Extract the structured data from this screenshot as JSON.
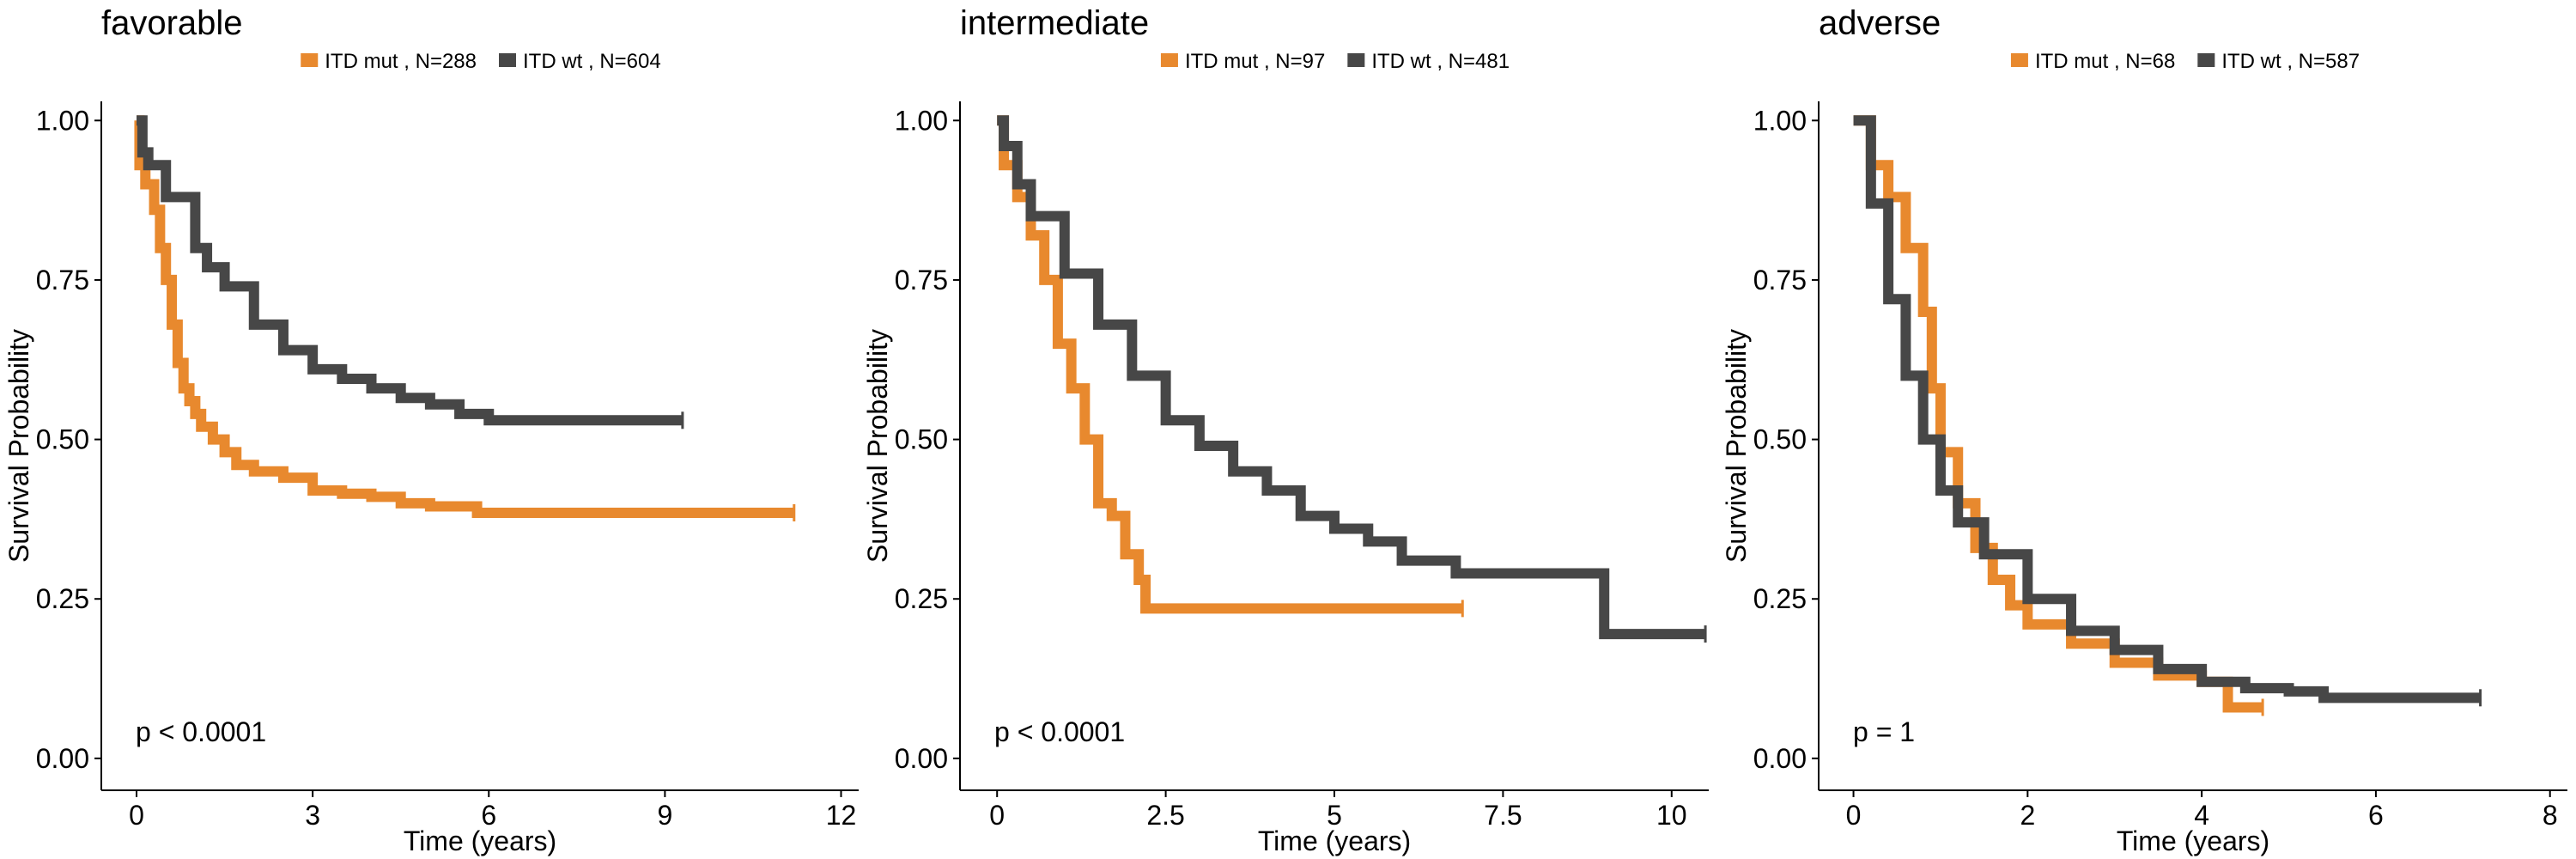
{
  "chart_data": [
    {
      "type": "line",
      "title": "favorable",
      "xlabel": "Time (years)",
      "ylabel": "Survival Probability",
      "xlim": [
        -0.6,
        12.3
      ],
      "ylim": [
        -0.05,
        1.03
      ],
      "xticks": [
        0,
        3,
        6,
        9,
        12
      ],
      "xtick_labels": [
        "0",
        "3",
        "6",
        "9",
        "12"
      ],
      "yticks": [
        0,
        0.25,
        0.5,
        0.75,
        1.0
      ],
      "ytick_labels": [
        "0.00",
        "0.25",
        "0.50",
        "0.75",
        "1.00"
      ],
      "pvalue": "p < 0.0001",
      "legend_position": "top",
      "series": [
        {
          "name": "ITD mut , N=288",
          "color": "#E8892E",
          "points": [
            [
              0,
              1.0
            ],
            [
              0.05,
              0.93
            ],
            [
              0.15,
              0.9
            ],
            [
              0.3,
              0.86
            ],
            [
              0.4,
              0.8
            ],
            [
              0.5,
              0.75
            ],
            [
              0.6,
              0.68
            ],
            [
              0.7,
              0.62
            ],
            [
              0.8,
              0.58
            ],
            [
              0.9,
              0.56
            ],
            [
              1.0,
              0.54
            ],
            [
              1.1,
              0.52
            ],
            [
              1.3,
              0.5
            ],
            [
              1.5,
              0.48
            ],
            [
              1.7,
              0.46
            ],
            [
              2.0,
              0.45
            ],
            [
              2.5,
              0.44
            ],
            [
              3.0,
              0.42
            ],
            [
              3.5,
              0.415
            ],
            [
              4.0,
              0.41
            ],
            [
              4.5,
              0.4
            ],
            [
              5.0,
              0.395
            ],
            [
              5.8,
              0.385
            ],
            [
              11.2,
              0.385
            ]
          ]
        },
        {
          "name": "ITD wt , N=604",
          "color": "#474747",
          "points": [
            [
              0,
              1.0
            ],
            [
              0.1,
              0.95
            ],
            [
              0.2,
              0.93
            ],
            [
              0.5,
              0.88
            ],
            [
              1.0,
              0.8
            ],
            [
              1.2,
              0.77
            ],
            [
              1.5,
              0.74
            ],
            [
              2.0,
              0.68
            ],
            [
              2.5,
              0.64
            ],
            [
              3.0,
              0.61
            ],
            [
              3.5,
              0.595
            ],
            [
              4.0,
              0.58
            ],
            [
              4.5,
              0.565
            ],
            [
              5.0,
              0.555
            ],
            [
              5.5,
              0.54
            ],
            [
              6.0,
              0.53
            ],
            [
              9.3,
              0.53
            ]
          ]
        }
      ]
    },
    {
      "type": "line",
      "title": "intermediate",
      "xlabel": "Time (years)",
      "ylabel": "Survival Probability",
      "xlim": [
        -0.55,
        10.55
      ],
      "ylim": [
        -0.05,
        1.03
      ],
      "xticks": [
        0,
        2.5,
        5,
        7.5,
        10
      ],
      "xtick_labels": [
        "0",
        "2.5",
        "5",
        "7.5",
        "10"
      ],
      "yticks": [
        0,
        0.25,
        0.5,
        0.75,
        1.0
      ],
      "ytick_labels": [
        "0.00",
        "0.25",
        "0.50",
        "0.75",
        "1.00"
      ],
      "pvalue": "p < 0.0001",
      "legend_position": "top",
      "series": [
        {
          "name": "ITD mut , N=97",
          "color": "#E8892E",
          "points": [
            [
              0,
              1.0
            ],
            [
              0.1,
              0.93
            ],
            [
              0.3,
              0.88
            ],
            [
              0.5,
              0.82
            ],
            [
              0.7,
              0.75
            ],
            [
              0.9,
              0.65
            ],
            [
              1.1,
              0.58
            ],
            [
              1.3,
              0.5
            ],
            [
              1.5,
              0.4
            ],
            [
              1.7,
              0.38
            ],
            [
              1.9,
              0.32
            ],
            [
              2.1,
              0.28
            ],
            [
              2.2,
              0.235
            ],
            [
              6.9,
              0.235
            ]
          ]
        },
        {
          "name": "ITD wt , N=481",
          "color": "#474747",
          "points": [
            [
              0,
              1.0
            ],
            [
              0.1,
              0.96
            ],
            [
              0.3,
              0.9
            ],
            [
              0.5,
              0.85
            ],
            [
              1.0,
              0.76
            ],
            [
              1.5,
              0.68
            ],
            [
              2.0,
              0.6
            ],
            [
              2.5,
              0.53
            ],
            [
              3.0,
              0.49
            ],
            [
              3.5,
              0.45
            ],
            [
              4.0,
              0.42
            ],
            [
              4.5,
              0.38
            ],
            [
              5.0,
              0.36
            ],
            [
              5.5,
              0.34
            ],
            [
              6.0,
              0.31
            ],
            [
              6.8,
              0.29
            ],
            [
              9.0,
              0.29
            ],
            [
              9.0,
              0.195
            ],
            [
              10.5,
              0.195
            ]
          ]
        }
      ]
    },
    {
      "type": "line",
      "title": "adverse",
      "xlabel": "Time (years)",
      "ylabel": "Survival Probability",
      "xlim": [
        -0.4,
        8.2
      ],
      "ylim": [
        -0.05,
        1.03
      ],
      "xticks": [
        0,
        2,
        4,
        6,
        8
      ],
      "xtick_labels": [
        "0",
        "2",
        "4",
        "6",
        "8"
      ],
      "yticks": [
        0,
        0.25,
        0.5,
        0.75,
        1.0
      ],
      "ytick_labels": [
        "0.00",
        "0.25",
        "0.50",
        "0.75",
        "1.00"
      ],
      "pvalue": "p = 1",
      "legend_position": "top",
      "series": [
        {
          "name": "ITD mut , N=68",
          "color": "#E8892E",
          "points": [
            [
              0,
              1.0
            ],
            [
              0.2,
              0.93
            ],
            [
              0.4,
              0.88
            ],
            [
              0.6,
              0.8
            ],
            [
              0.8,
              0.7
            ],
            [
              0.9,
              0.58
            ],
            [
              1.0,
              0.48
            ],
            [
              1.2,
              0.4
            ],
            [
              1.4,
              0.33
            ],
            [
              1.6,
              0.28
            ],
            [
              1.8,
              0.24
            ],
            [
              2.0,
              0.21
            ],
            [
              2.5,
              0.18
            ],
            [
              3.0,
              0.15
            ],
            [
              3.5,
              0.13
            ],
            [
              4.0,
              0.12
            ],
            [
              4.3,
              0.08
            ],
            [
              4.7,
              0.08
            ]
          ]
        },
        {
          "name": "ITD wt , N=587",
          "color": "#474747",
          "points": [
            [
              0,
              1.0
            ],
            [
              0.2,
              0.87
            ],
            [
              0.4,
              0.72
            ],
            [
              0.6,
              0.6
            ],
            [
              0.8,
              0.5
            ],
            [
              1.0,
              0.42
            ],
            [
              1.2,
              0.37
            ],
            [
              1.5,
              0.32
            ],
            [
              2.0,
              0.25
            ],
            [
              2.5,
              0.2
            ],
            [
              3.0,
              0.17
            ],
            [
              3.5,
              0.14
            ],
            [
              4.0,
              0.12
            ],
            [
              4.5,
              0.11
            ],
            [
              5.0,
              0.105
            ],
            [
              5.4,
              0.095
            ],
            [
              7.2,
              0.095
            ]
          ]
        }
      ]
    }
  ]
}
